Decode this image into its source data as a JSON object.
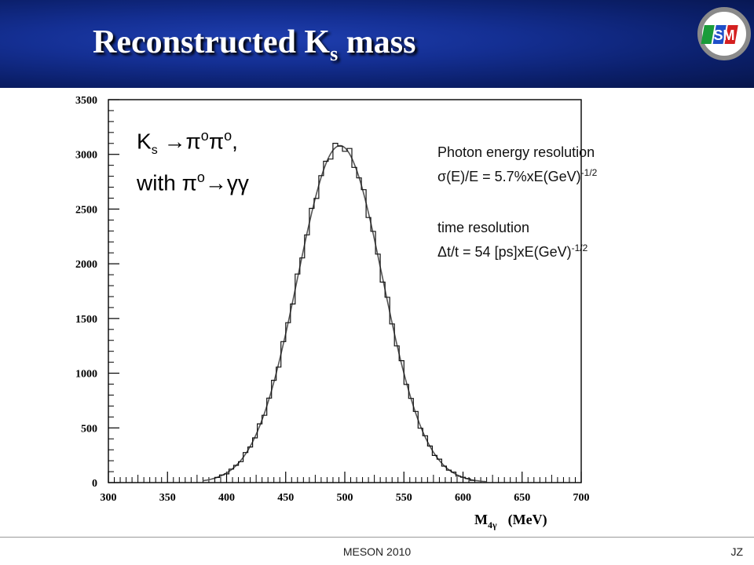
{
  "slide": {
    "title_main": "Reconstructed K",
    "title_sub": "s",
    "title_end": " mass",
    "footer_center": "MESON 2010",
    "footer_right": "JZ",
    "logo_text": "SM"
  },
  "annotations": {
    "reaction_line1_k": "K",
    "reaction_line1_sub": "s",
    "reaction_line1_rest": " →π",
    "reaction_line1_o1": "o",
    "reaction_line1_pi2": "π",
    "reaction_line1_o2": "o",
    "reaction_line1_end": ",",
    "reaction_line2_pre": "with π",
    "reaction_line2_o": "o",
    "reaction_line2_end": "→γγ",
    "energy_title": "Photon energy resolution",
    "energy_formula": "σ(E)/E = 5.7%xE(GeV)",
    "energy_exp": "-1/2",
    "time_title": "time resolution",
    "time_formula": "Δt/t = 54 [ps]xE(GeV)",
    "time_exp": "-1/2"
  },
  "chart_data": {
    "type": "histogram",
    "xlabel": "M",
    "xlabel_sub": "4γ",
    "xlabel_unit": "(MeV)",
    "ylabel": "",
    "xlim": [
      300,
      700
    ],
    "ylim": [
      0,
      3500
    ],
    "xticks": [
      300,
      350,
      400,
      450,
      500,
      550,
      600,
      650,
      700
    ],
    "yticks": [
      0,
      500,
      1000,
      1500,
      2000,
      2500,
      3000,
      3500
    ],
    "series": [
      {
        "kind": "histogram",
        "mean": 496,
        "sigma": 36,
        "peak": 3080,
        "peak_max": 3150,
        "range": [
          390,
          610
        ],
        "bin_width": 4
      },
      {
        "kind": "gaussian_fit",
        "mean": 496,
        "sigma": 36,
        "peak": 3080
      }
    ],
    "colors": {
      "histogram": "#111111",
      "fit": "#555555",
      "axes": "#000000"
    }
  }
}
